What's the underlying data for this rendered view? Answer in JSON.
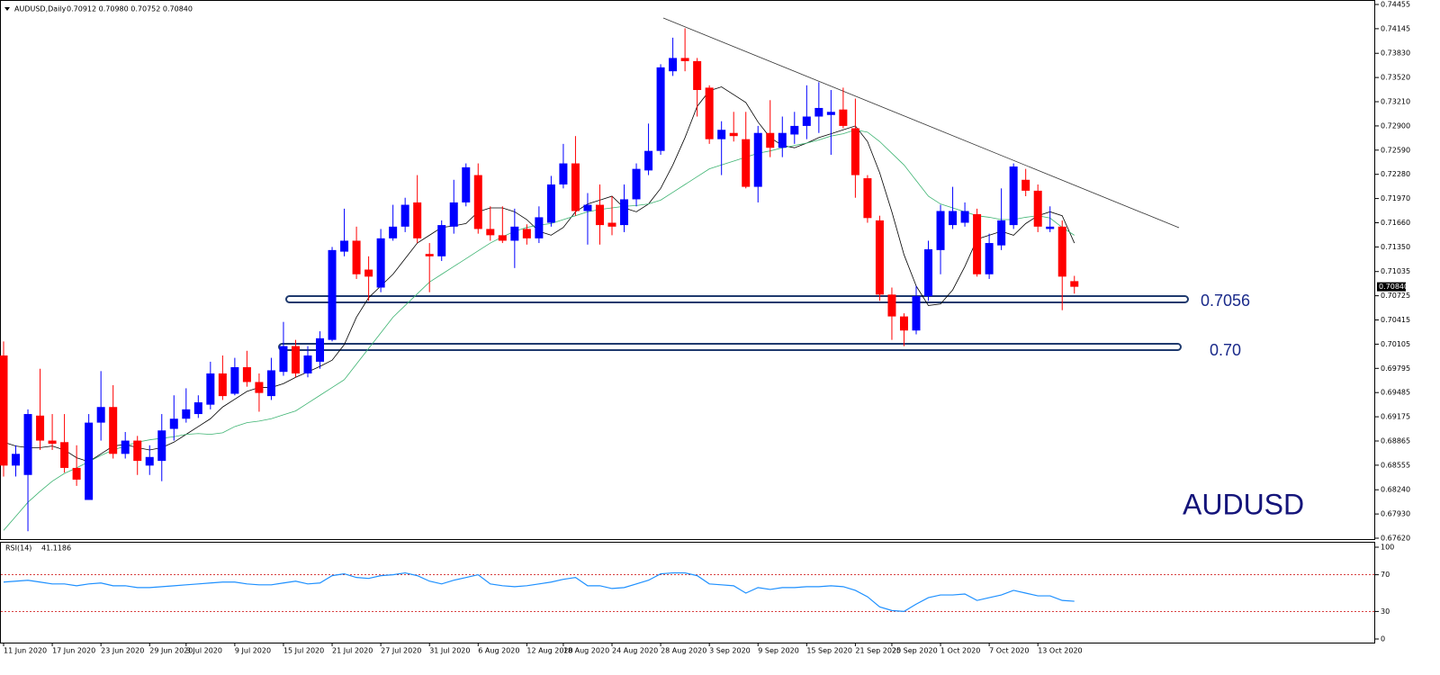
{
  "chart_data": [
    {
      "type": "candlestick",
      "title": "AUDUSD,Daily",
      "ohlc_label": "0.70912 0.70980 0.70752 0.70840",
      "categories": [
        "11 Jun 2020",
        null,
        null,
        null,
        "17 Jun 2020",
        null,
        null,
        null,
        "23 Jun 2020",
        null,
        null,
        null,
        "29 Jun 2020",
        null,
        null,
        "3 Jul 2020",
        null,
        null,
        null,
        "9 Jul 2020",
        null,
        null,
        null,
        "15 Jul 2020",
        null,
        null,
        null,
        "21 Jul 2020",
        null,
        null,
        null,
        "27 Jul 2020",
        null,
        null,
        null,
        "31 Jul 2020",
        null,
        null,
        null,
        "6 Aug 2020",
        null,
        null,
        null,
        "12 Aug 2020",
        null,
        null,
        "18 Aug 2020",
        null,
        null,
        null,
        "24 Aug 2020",
        null,
        null,
        null,
        "28 Aug 2020",
        null,
        null,
        null,
        "3 Sep 2020",
        null,
        null,
        null,
        "9 Sep 2020",
        null,
        null,
        null,
        "15 Sep 2020",
        null,
        null,
        null,
        "21 Sep 2020",
        null,
        null,
        "25 Sep 2020",
        null,
        null,
        null,
        "1 Oct 2020",
        null,
        null,
        null,
        "7 Oct 2020",
        null,
        null,
        null,
        "13 Oct 2020",
        null,
        null,
        null
      ],
      "open": [
        0.6996,
        0.6855,
        0.6843,
        0.6919,
        0.6887,
        0.6885,
        0.6852,
        0.6811,
        0.691,
        0.693,
        0.687,
        0.6887,
        0.6855,
        0.6861,
        0.6902,
        0.6915,
        0.6921,
        0.6933,
        0.6973,
        0.6947,
        0.6981,
        0.6962,
        0.6944,
        0.6975,
        0.7008,
        0.6973,
        0.6988,
        0.7016,
        0.7129,
        0.7143,
        0.7106,
        0.7083,
        0.7146,
        0.7161,
        0.7192,
        0.7126,
        0.7123,
        0.7161,
        0.7192,
        0.7227,
        0.7158,
        0.715,
        0.7143,
        0.7158,
        0.7146,
        0.7166,
        0.7215,
        0.7242,
        0.7181,
        0.7189,
        0.7166,
        0.7163,
        0.7196,
        0.7233,
        0.7258,
        0.736,
        0.7377,
        0.7373,
        0.7339,
        0.7273,
        0.7281,
        0.7273,
        0.7212,
        0.7281,
        0.7262,
        0.7279,
        0.729,
        0.7302,
        0.7304,
        0.7311,
        0.7287,
        0.7223,
        0.7169,
        0.7074,
        0.7046,
        0.7028,
        0.7072,
        0.7131,
        0.7163,
        0.7166,
        0.7177,
        0.71,
        0.7137,
        0.7163,
        0.7221,
        0.7207,
        0.7158,
        0.7161,
        0.70912
      ],
      "high": [
        0.7014,
        0.6881,
        0.6927,
        0.6979,
        0.6921,
        0.6921,
        0.6881,
        0.6921,
        0.6976,
        0.6958,
        0.6898,
        0.6893,
        0.6881,
        0.6921,
        0.6945,
        0.6954,
        0.6945,
        0.6988,
        0.6996,
        0.6993,
        0.7002,
        0.6973,
        0.6993,
        0.7039,
        0.7016,
        0.7008,
        0.7027,
        0.7135,
        0.7184,
        0.7161,
        0.7123,
        0.7158,
        0.7189,
        0.7198,
        0.7227,
        0.714,
        0.7169,
        0.7221,
        0.7242,
        0.7242,
        0.7187,
        0.7187,
        0.7184,
        0.7164,
        0.7187,
        0.7226,
        0.7267,
        0.7277,
        0.7204,
        0.7215,
        0.72,
        0.7215,
        0.7242,
        0.7293,
        0.7369,
        0.7403,
        0.7415,
        0.7377,
        0.7342,
        0.7296,
        0.7308,
        0.7308,
        0.729,
        0.7323,
        0.7302,
        0.7308,
        0.7342,
        0.7346,
        0.7336,
        0.7339,
        0.7325,
        0.7227,
        0.7175,
        0.7083,
        0.705,
        0.7085,
        0.7143,
        0.7189,
        0.7212,
        0.7192,
        0.7184,
        0.7152,
        0.721,
        0.7242,
        0.7235,
        0.7215,
        0.7187,
        0.7169,
        0.7098
      ],
      "low": [
        0.6841,
        0.6841,
        0.6771,
        0.6875,
        0.6875,
        0.6846,
        0.6829,
        0.6811,
        0.6887,
        0.6864,
        0.6864,
        0.6843,
        0.6843,
        0.6835,
        0.6887,
        0.691,
        0.6916,
        0.6927,
        0.6939,
        0.6945,
        0.6956,
        0.6924,
        0.6939,
        0.697,
        0.6968,
        0.6968,
        0.6979,
        0.7014,
        0.7123,
        0.7094,
        0.7066,
        0.7077,
        0.7143,
        0.7154,
        0.714,
        0.7077,
        0.7117,
        0.7152,
        0.7187,
        0.7152,
        0.7143,
        0.714,
        0.7108,
        0.7138,
        0.714,
        0.7161,
        0.721,
        0.7175,
        0.7138,
        0.7138,
        0.715,
        0.7154,
        0.7187,
        0.7227,
        0.7253,
        0.7354,
        0.736,
        0.7302,
        0.7267,
        0.7227,
        0.727,
        0.721,
        0.7192,
        0.725,
        0.725,
        0.7267,
        0.7273,
        0.7281,
        0.7253,
        0.7287,
        0.7198,
        0.7166,
        0.7066,
        0.7016,
        0.7008,
        0.7023,
        0.7066,
        0.71,
        0.7158,
        0.7161,
        0.7097,
        0.7094,
        0.7131,
        0.7158,
        0.72,
        0.7154,
        0.7154,
        0.7054,
        0.70752
      ],
      "close": [
        0.6855,
        0.687,
        0.6921,
        0.6887,
        0.6883,
        0.6852,
        0.6837,
        0.691,
        0.693,
        0.687,
        0.6887,
        0.6861,
        0.6866,
        0.69,
        0.6915,
        0.6927,
        0.6936,
        0.6973,
        0.6944,
        0.6981,
        0.6962,
        0.6948,
        0.6977,
        0.7008,
        0.6973,
        0.6996,
        0.7018,
        0.7131,
        0.7143,
        0.71,
        0.7097,
        0.7146,
        0.7161,
        0.7189,
        0.7146,
        0.7123,
        0.7163,
        0.7192,
        0.7237,
        0.7158,
        0.715,
        0.7143,
        0.7161,
        0.7146,
        0.7173,
        0.7215,
        0.7242,
        0.7181,
        0.7189,
        0.7163,
        0.7161,
        0.7196,
        0.7235,
        0.7258,
        0.7365,
        0.7377,
        0.7373,
        0.7336,
        0.7273,
        0.7285,
        0.7277,
        0.7212,
        0.7281,
        0.7262,
        0.7281,
        0.729,
        0.7302,
        0.7313,
        0.7308,
        0.729,
        0.7227,
        0.7172,
        0.7074,
        0.7046,
        0.7028,
        0.7072,
        0.7132,
        0.7181,
        0.7181,
        0.7181,
        0.71,
        0.714,
        0.7169,
        0.7238,
        0.7207,
        0.7161,
        0.7161,
        0.7097,
        0.7084
      ],
      "up_color": "#0000ff",
      "down_color": "#ff0000",
      "series": [
        {
          "color": "#000000",
          "values": [
            0.6885,
            0.688,
            0.6878,
            0.6878,
            0.688,
            0.6875,
            0.6865,
            0.686,
            0.687,
            0.688,
            0.6882,
            0.6878,
            0.6875,
            0.6878,
            0.6885,
            0.6895,
            0.6905,
            0.6915,
            0.693,
            0.694,
            0.695,
            0.6955,
            0.6955,
            0.696,
            0.6968,
            0.6975,
            0.6982,
            0.699,
            0.701,
            0.7045,
            0.707,
            0.7085,
            0.71,
            0.712,
            0.714,
            0.715,
            0.716,
            0.7162,
            0.7165,
            0.718,
            0.7185,
            0.7185,
            0.718,
            0.717,
            0.7155,
            0.715,
            0.716,
            0.718,
            0.719,
            0.7195,
            0.72,
            0.7185,
            0.718,
            0.719,
            0.721,
            0.724,
            0.7275,
            0.7315,
            0.7335,
            0.734,
            0.733,
            0.732,
            0.7295,
            0.7275,
            0.7265,
            0.7262,
            0.7268,
            0.7275,
            0.728,
            0.7285,
            0.729,
            0.727,
            0.723,
            0.718,
            0.7125,
            0.7085,
            0.706,
            0.7062,
            0.708,
            0.711,
            0.7145,
            0.715,
            0.7155,
            0.715,
            0.7165,
            0.7175,
            0.718,
            0.7175,
            0.714
          ]
        },
        {
          "color": "#3cb371",
          "values": [
            0.6772,
            0.679,
            0.6808,
            0.6822,
            0.6835,
            0.6845,
            0.6852,
            0.686,
            0.6868,
            0.6875,
            0.688,
            0.6885,
            0.6888,
            0.689,
            0.6892,
            0.6895,
            0.6896,
            0.6895,
            0.6897,
            0.6905,
            0.691,
            0.6912,
            0.6915,
            0.692,
            0.6925,
            0.6935,
            0.6945,
            0.6955,
            0.6965,
            0.6985,
            0.7005,
            0.7025,
            0.7045,
            0.706,
            0.7075,
            0.709,
            0.71,
            0.711,
            0.712,
            0.713,
            0.714,
            0.7148,
            0.7155,
            0.716,
            0.7163,
            0.7165,
            0.717,
            0.7175,
            0.718,
            0.7183,
            0.7185,
            0.7187,
            0.7188,
            0.719,
            0.7195,
            0.7205,
            0.7215,
            0.7225,
            0.7235,
            0.724,
            0.7245,
            0.725,
            0.7255,
            0.7258,
            0.7262,
            0.7265,
            0.7268,
            0.7272,
            0.7277,
            0.728,
            0.7285,
            0.7282,
            0.727,
            0.7255,
            0.724,
            0.722,
            0.72,
            0.719,
            0.7185,
            0.718,
            0.7175,
            0.7173,
            0.717,
            0.717,
            0.7173,
            0.7175,
            0.7172,
            0.716,
            0.715
          ]
        }
      ],
      "ylim": [
        0.6762,
        0.74455
      ],
      "yticks": [
        0.74455,
        0.74145,
        {
          "value": 0.7383,
          "label": "0.73830"
        },
        {
          "value": 0.7352,
          "label": "0.73520"
        },
        {
          "value": 0.7321,
          "label": "0.73210"
        },
        {
          "value": 0.729,
          "label": "0.72900"
        },
        {
          "value": 0.7259,
          "label": "0.72590"
        },
        {
          "value": 0.7228,
          "label": "0.72280"
        },
        {
          "value": 0.7197,
          "label": "0.71970"
        },
        {
          "value": 0.7166,
          "label": "0.71660"
        },
        {
          "value": 0.7135,
          "label": "0.71350"
        },
        0.71035,
        0.70725,
        0.70415,
        0.70105,
        0.69795,
        0.69485,
        0.69175,
        0.68865,
        0.68555,
        {
          "value": 0.6824,
          "label": "0.68240"
        },
        {
          "value": 0.6793,
          "label": "0.67930"
        },
        {
          "value": 0.6762,
          "label": "0.67620"
        }
      ],
      "current_price": {
        "value": 0.7084,
        "label": "0.70840"
      },
      "annotations": [
        "0.7056",
        "0.70",
        "AUDUSD"
      ]
    },
    {
      "type": "line",
      "title": "RSI(14)",
      "color": "#1e90ff",
      "values": [
        62,
        63,
        64,
        62,
        60,
        60,
        58,
        60,
        61,
        58,
        58,
        56,
        56,
        57,
        58,
        59,
        60,
        61,
        62,
        62,
        60,
        59,
        59,
        61,
        63,
        60,
        61,
        69,
        71,
        67,
        66,
        69,
        70,
        72,
        69,
        63,
        60,
        64,
        67,
        70,
        60,
        58,
        57,
        58,
        60,
        62,
        65,
        67,
        58,
        58,
        55,
        56,
        60,
        64,
        71,
        72,
        72,
        69,
        60,
        59,
        58,
        50,
        56,
        54,
        56,
        56,
        57,
        57,
        58,
        57,
        53,
        46,
        35,
        31,
        30,
        38,
        45,
        48,
        48,
        49,
        42,
        45,
        48,
        53,
        50,
        47,
        47,
        42,
        41.1186
      ],
      "ylim": [
        0,
        100
      ],
      "yticks": [
        0,
        30,
        70,
        100
      ],
      "levels": [
        30,
        70
      ],
      "level_color": "#cc0000"
    }
  ]
}
